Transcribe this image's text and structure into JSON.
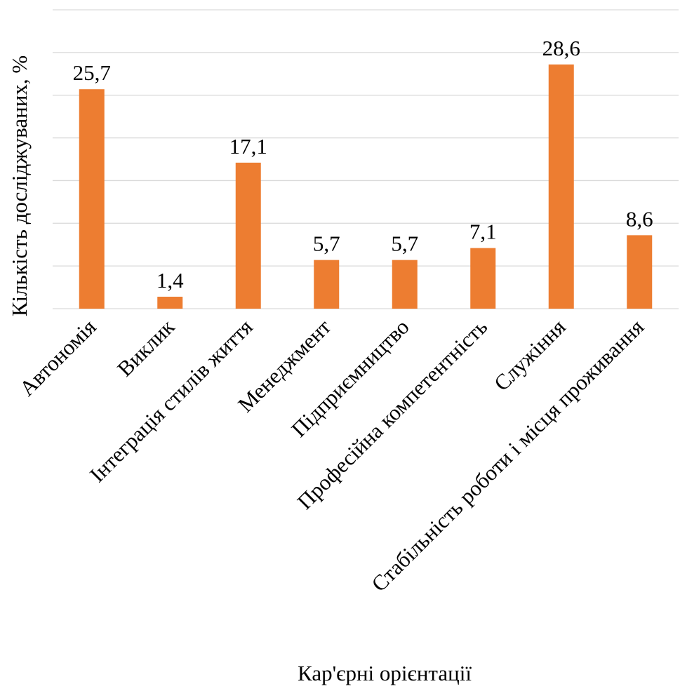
{
  "chart_data": {
    "type": "bar",
    "categories": [
      "Автономія",
      "Виклик",
      "Інтеграція стилів життя",
      "Менеджмент",
      "Підприємництво",
      "Професійна компетентність",
      "Служіння",
      "Стабільність роботи і місця проживання"
    ],
    "values": [
      25.7,
      1.4,
      17.1,
      5.7,
      5.7,
      7.1,
      28.6,
      8.6
    ],
    "value_labels": [
      "25,7",
      "1,4",
      "17,1",
      "5,7",
      "5,7",
      "7,1",
      "28,6",
      "8,6"
    ],
    "title": "",
    "xlabel": "Кар'єрні орієнтації",
    "ylabel": "Кількість досліджуваних, %",
    "ylim": [
      0,
      35
    ],
    "y_tick_step": 5,
    "y_tick_labels_shown": false,
    "grid": true,
    "legend": "none",
    "bar_color": "#ED7D31",
    "grid_color": "#D9D9D9"
  }
}
